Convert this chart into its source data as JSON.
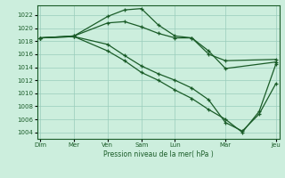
{
  "background_color": "#cceedd",
  "grid_color": "#99ccbb",
  "line_color": "#1a5c28",
  "xlabel": "Pression niveau de la mer( hPa )",
  "ylim": [
    1003,
    1023.5
  ],
  "yticks": [
    1004,
    1006,
    1008,
    1010,
    1012,
    1014,
    1016,
    1018,
    1020,
    1022
  ],
  "xtick_major_labels": [
    "Dim",
    "Mer",
    "Ven",
    "Sam",
    "Lun",
    "Mar",
    "Jeu"
  ],
  "day_positions": [
    0,
    2,
    4,
    6,
    8,
    11,
    14
  ],
  "day_labels": [
    "Dim",
    "Mer",
    "Ven",
    "Sam",
    "Lun",
    "Mar",
    "Jeu"
  ],
  "xlim": [
    -0.2,
    14.2
  ],
  "series1_x": [
    0,
    2,
    4,
    5,
    6,
    7,
    8,
    9,
    10,
    11,
    14
  ],
  "series1_y": [
    1018.5,
    1018.8,
    1021.8,
    1022.8,
    1023.0,
    1020.5,
    1018.8,
    1018.5,
    1016.5,
    1013.8,
    1014.8
  ],
  "series2_x": [
    0,
    2,
    4,
    5,
    6,
    7,
    8,
    9,
    10,
    11,
    14
  ],
  "series2_y": [
    1018.5,
    1018.8,
    1020.8,
    1021.0,
    1020.2,
    1019.2,
    1018.5,
    1018.5,
    1016.0,
    1015.0,
    1015.2
  ],
  "series3_x": [
    0,
    2,
    4,
    5,
    6,
    7,
    8,
    9,
    10,
    11,
    12,
    13,
    14
  ],
  "series3_y": [
    1018.5,
    1018.7,
    1017.5,
    1015.8,
    1014.2,
    1013.0,
    1012.0,
    1010.8,
    1009.0,
    1005.5,
    1004.2,
    1006.8,
    1011.5
  ],
  "series4_x": [
    0,
    2,
    4,
    5,
    6,
    7,
    8,
    9,
    10,
    11,
    12,
    13,
    14
  ],
  "series4_y": [
    1018.5,
    1018.7,
    1016.5,
    1015.0,
    1013.2,
    1012.0,
    1010.5,
    1009.2,
    1007.5,
    1006.0,
    1004.0,
    1007.2,
    1014.5
  ]
}
